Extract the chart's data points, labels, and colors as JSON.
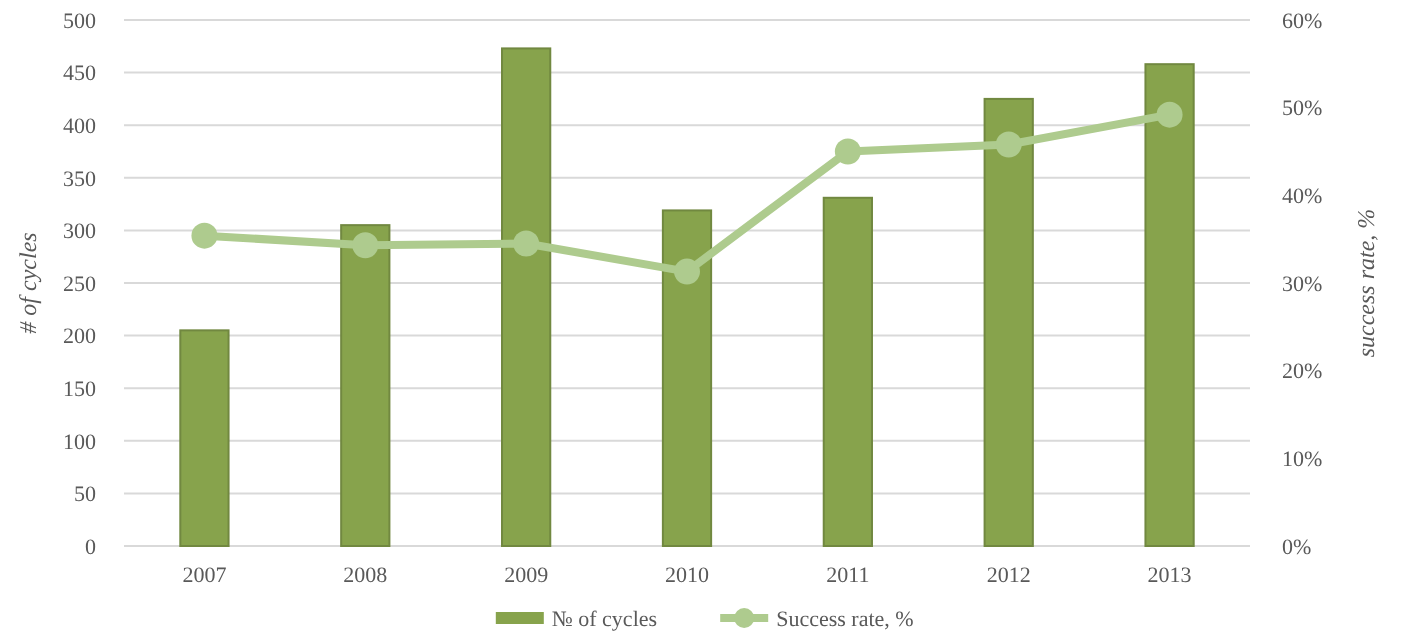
{
  "chart_data": {
    "type": "bar",
    "categories": [
      "2007",
      "2008",
      "2009",
      "2010",
      "2011",
      "2012",
      "2013"
    ],
    "series": [
      {
        "name": "№ of cycles",
        "color": "#87a34c",
        "values": [
          205,
          305,
          473,
          319,
          331,
          425,
          458
        ]
      },
      {
        "name": "Success rate, %",
        "type": "line",
        "axis": "y2",
        "color": "#aecb8e",
        "marker": "circle",
        "values": [
          35.4,
          34.3,
          34.5,
          31.3,
          45.0,
          45.8,
          49.2
        ]
      }
    ],
    "ylabel": "# of cycles",
    "y2label": "success rate, %",
    "ylim": [
      0,
      500
    ],
    "yticks": [
      0,
      50,
      100,
      150,
      200,
      250,
      300,
      350,
      400,
      450,
      500
    ],
    "y2lim": [
      0,
      60
    ],
    "y2ticks": [
      {
        "value": 0,
        "label": "0%"
      },
      {
        "value": 10,
        "label": "10%"
      },
      {
        "value": 20,
        "label": "20%"
      },
      {
        "value": 30,
        "label": "30%"
      },
      {
        "value": 40,
        "label": "40%"
      },
      {
        "value": 50,
        "label": "50%"
      },
      {
        "value": 60,
        "label": "60%"
      }
    ],
    "grid": "y",
    "legend": "bottom"
  }
}
